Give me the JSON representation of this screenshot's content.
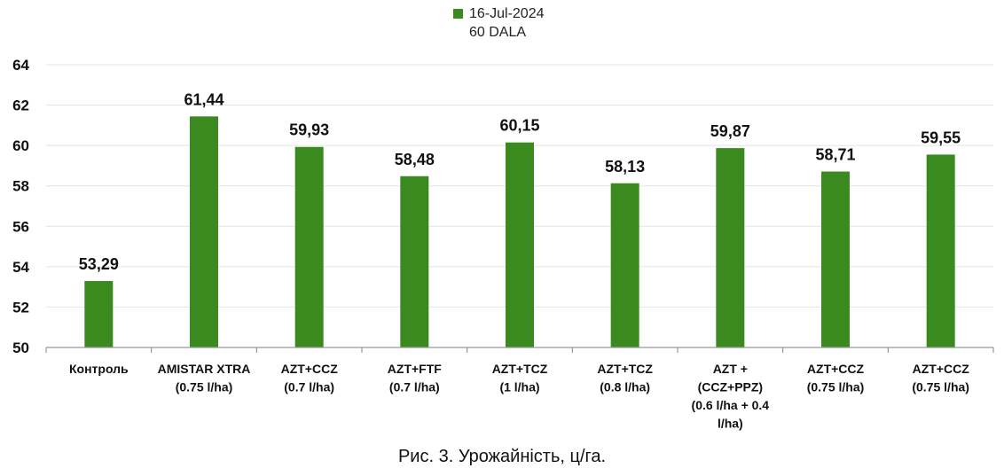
{
  "chart_data": {
    "type": "bar",
    "categories": [
      [
        "Контроль"
      ],
      [
        "AMISTAR XTRA",
        "(0.75 l/ha)"
      ],
      [
        "AZT+CCZ",
        "(0.7 l/ha)"
      ],
      [
        "AZT+FTF",
        "(0.7 l/ha)"
      ],
      [
        "AZT+TCZ",
        "(1 l/ha)"
      ],
      [
        "AZT+TCZ",
        "(0.8 l/ha)"
      ],
      [
        "AZT +",
        "(CCZ+PPZ)",
        "(0.6 l/ha + 0.4",
        "l/ha)"
      ],
      [
        "AZT+CCZ",
        "(0.75 l/ha)"
      ],
      [
        "AZT+CCZ",
        "(0.75 l/ha)"
      ]
    ],
    "series": [
      {
        "name": "16-Jul-2024",
        "values": [
          53.29,
          61.44,
          59.93,
          58.48,
          60.15,
          58.13,
          59.87,
          58.71,
          59.55
        ],
        "value_labels": [
          "53,29",
          "61,44",
          "59,93",
          "58,48",
          "60,15",
          "58,13",
          "59,87",
          "58,71",
          "59,55"
        ],
        "color": "#3a8a1f"
      }
    ],
    "legend": {
      "entry": "16-Jul-2024",
      "subtitle": "60 DALA",
      "position": "top-center"
    },
    "ylim": [
      50,
      64
    ],
    "yticks": [
      50,
      52,
      54,
      56,
      58,
      60,
      62,
      64
    ],
    "grid": true,
    "caption": "Рис. 3. Урожайність, ц/га."
  }
}
